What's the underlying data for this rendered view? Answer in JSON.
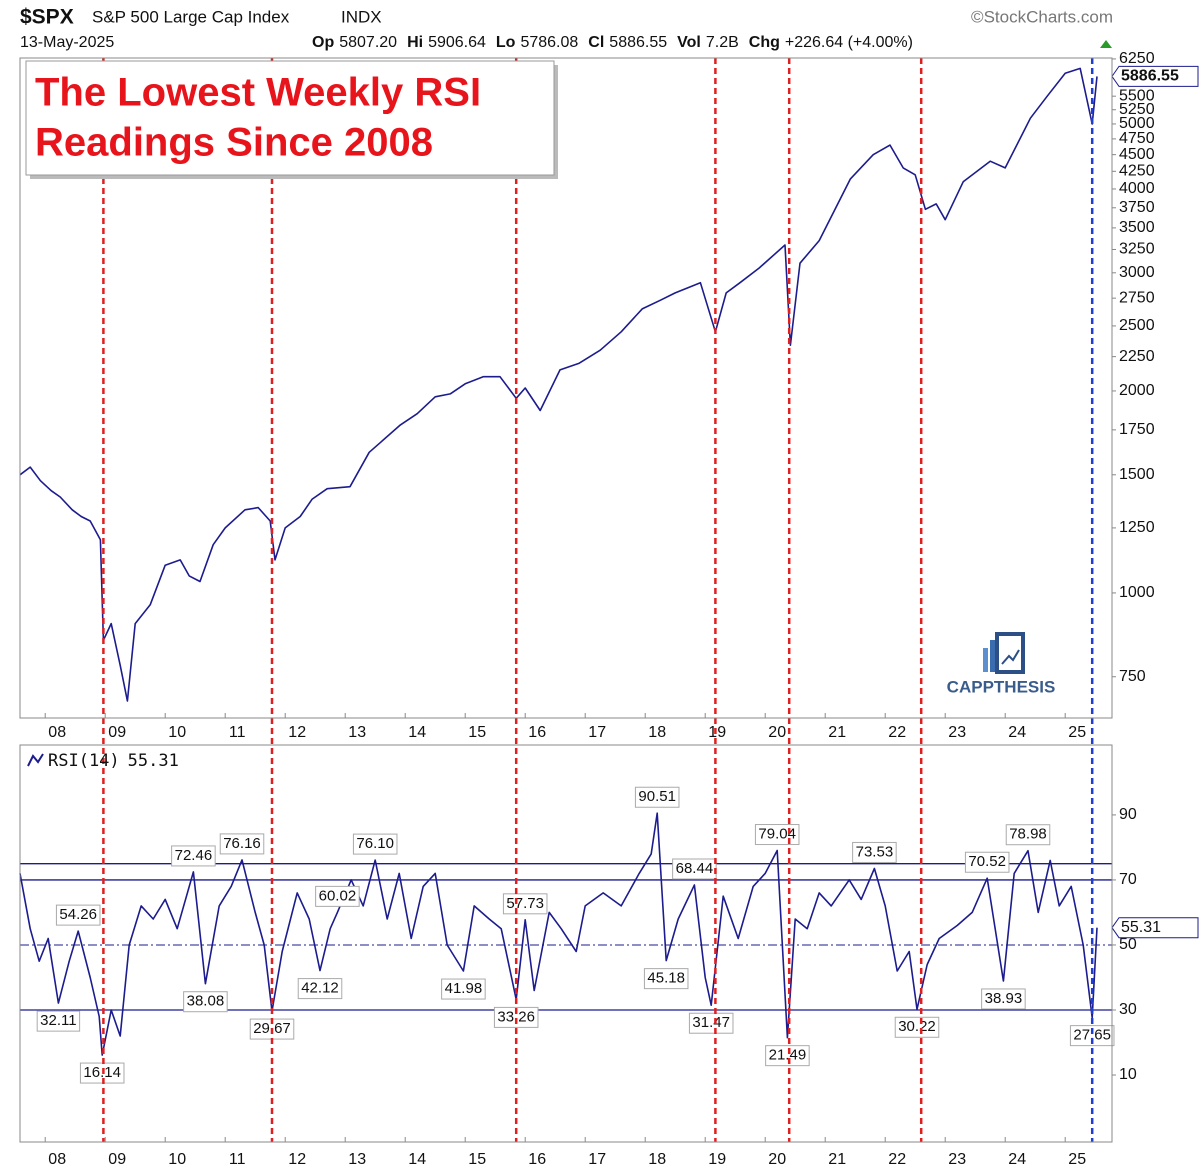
{
  "header": {
    "symbol": "$SPX",
    "name": "S&P 500 Large Cap Index",
    "exchange": "INDX",
    "source": "©StockCharts.com",
    "date": "13-May-2025",
    "quote": [
      {
        "label": "Op",
        "value": "5807.20"
      },
      {
        "label": "Hi",
        "value": "5906.64"
      },
      {
        "label": "Lo",
        "value": "5786.08"
      },
      {
        "label": "Cl",
        "value": "5886.55"
      },
      {
        "label": "Vol",
        "value": "7.2B"
      },
      {
        "label": "Chg",
        "value": "+226.64 (+4.00%)"
      }
    ]
  },
  "callout": [
    "The Lowest Weekly RSI",
    "Readings Since 2008"
  ],
  "watermark": "CAPPTHESIS",
  "markers": {
    "x": [
      2008.97,
      2011.78,
      2015.85,
      2019.17,
      2020.4,
      2022.6,
      2025.45
    ],
    "colors": [
      "#e02020",
      "#e02020",
      "#e02020",
      "#e02020",
      "#e02020",
      "#e02020",
      "#1f3fd0"
    ]
  },
  "chart_data": [
    {
      "type": "line",
      "color": "#1c1c8e",
      "log_scale": true,
      "x": [
        2007.58,
        2007.75,
        2007.92,
        2008.1,
        2008.25,
        2008.45,
        2008.6,
        2008.75,
        2008.92,
        2008.97,
        2009.1,
        2009.25,
        2009.37,
        2009.5,
        2009.75,
        2010.0,
        2010.25,
        2010.4,
        2010.58,
        2010.8,
        2011.0,
        2011.33,
        2011.55,
        2011.75,
        2011.83,
        2012.0,
        2012.25,
        2012.45,
        2012.7,
        2013.08,
        2013.4,
        2013.6,
        2013.92,
        2014.2,
        2014.5,
        2014.75,
        2015.0,
        2015.3,
        2015.58,
        2015.85,
        2016.0,
        2016.25,
        2016.58,
        2016.9,
        2017.25,
        2017.6,
        2017.95,
        2018.25,
        2018.5,
        2018.92,
        2019.17,
        2019.35,
        2019.58,
        2019.9,
        2020.33,
        2020.42,
        2020.58,
        2020.9,
        2021.42,
        2021.8,
        2022.08,
        2022.3,
        2022.5,
        2022.67,
        2022.85,
        2023.0,
        2023.3,
        2023.75,
        2024.0,
        2024.42,
        2024.7,
        2025.0,
        2025.25,
        2025.45,
        2025.53
      ],
      "values": [
        1500,
        1540,
        1470,
        1420,
        1390,
        1330,
        1300,
        1280,
        1200,
        850,
        900,
        780,
        690,
        900,
        960,
        1100,
        1120,
        1060,
        1040,
        1180,
        1250,
        1330,
        1340,
        1280,
        1120,
        1250,
        1300,
        1380,
        1430,
        1440,
        1620,
        1680,
        1780,
        1850,
        1960,
        1980,
        2050,
        2100,
        2100,
        1950,
        2020,
        1870,
        2150,
        2200,
        2300,
        2450,
        2650,
        2730,
        2800,
        2900,
        2450,
        2800,
        2900,
        3050,
        3300,
        2340,
        3100,
        3350,
        4140,
        4500,
        4650,
        4300,
        4200,
        3730,
        3800,
        3600,
        4100,
        4400,
        4300,
        5100,
        5500,
        5950,
        6050,
        5000,
        5886.55
      ],
      "xlim": [
        2007.58,
        2025.78
      ],
      "ylim": [
        651,
        6270
      ],
      "xticks": [
        {
          "value": 2008,
          "label": "08"
        },
        {
          "value": 2009,
          "label": "09"
        },
        {
          "value": 2010,
          "label": "10"
        },
        {
          "value": 2011,
          "label": "11"
        },
        {
          "value": 2012,
          "label": "12"
        },
        {
          "value": 2013,
          "label": "13"
        },
        {
          "value": 2014,
          "label": "14"
        },
        {
          "value": 2015,
          "label": "15"
        },
        {
          "value": 2016,
          "label": "16"
        },
        {
          "value": 2017,
          "label": "17"
        },
        {
          "value": 2018,
          "label": "18"
        },
        {
          "value": 2019,
          "label": "19"
        },
        {
          "value": 2020,
          "label": "20"
        },
        {
          "value": 2021,
          "label": "21"
        },
        {
          "value": 2022,
          "label": "22"
        },
        {
          "value": 2023,
          "label": "23"
        },
        {
          "value": 2024,
          "label": "24"
        },
        {
          "value": 2025,
          "label": "25"
        }
      ],
      "yticks": [
        750,
        1000,
        1250,
        1500,
        1750,
        2000,
        2250,
        2500,
        2750,
        3000,
        3250,
        3500,
        3750,
        4000,
        4250,
        4500,
        4750,
        5000,
        5250,
        5500,
        6250
      ]
    },
    {
      "type": "line",
      "legend": "RSI(14)",
      "color": "#1c1c8e",
      "x": [
        2007.58,
        2007.75,
        2007.9,
        2008.05,
        2008.22,
        2008.4,
        2008.55,
        2008.75,
        2008.9,
        2008.95,
        2009.1,
        2009.25,
        2009.4,
        2009.6,
        2009.8,
        2010.0,
        2010.2,
        2010.47,
        2010.67,
        2010.9,
        2011.1,
        2011.28,
        2011.5,
        2011.65,
        2011.78,
        2011.95,
        2012.2,
        2012.4,
        2012.58,
        2012.75,
        2012.87,
        2013.1,
        2013.3,
        2013.5,
        2013.7,
        2013.9,
        2014.1,
        2014.3,
        2014.5,
        2014.7,
        2014.97,
        2015.15,
        2015.4,
        2015.6,
        2015.85,
        2016.0,
        2016.15,
        2016.4,
        2016.6,
        2016.85,
        2017.0,
        2017.3,
        2017.6,
        2017.9,
        2018.1,
        2018.2,
        2018.35,
        2018.55,
        2018.82,
        2019.0,
        2019.1,
        2019.3,
        2019.55,
        2019.8,
        2020.0,
        2020.2,
        2020.37,
        2020.5,
        2020.7,
        2020.9,
        2021.1,
        2021.4,
        2021.6,
        2021.82,
        2022.0,
        2022.2,
        2022.4,
        2022.53,
        2022.7,
        2022.9,
        2023.2,
        2023.45,
        2023.7,
        2023.97,
        2024.15,
        2024.38,
        2024.55,
        2024.75,
        2024.9,
        2025.1,
        2025.3,
        2025.45,
        2025.53
      ],
      "values": [
        72,
        55,
        45,
        52,
        32.11,
        45,
        54.26,
        40,
        28,
        16.14,
        30,
        22,
        50,
        62,
        58,
        64,
        55,
        72.46,
        38.08,
        62,
        68,
        76.16,
        60,
        50,
        29.67,
        48,
        66,
        58,
        42.12,
        55,
        60.02,
        70,
        62,
        76.1,
        58,
        72,
        52,
        68,
        72,
        50,
        41.98,
        62,
        58,
        55,
        33.26,
        57.73,
        36,
        60,
        55,
        48,
        62,
        66,
        62,
        72,
        78,
        90.51,
        45.18,
        58,
        68.44,
        40,
        31.47,
        65,
        52,
        68,
        72,
        79.04,
        21.49,
        58,
        55,
        66,
        62,
        70,
        64,
        73.53,
        62,
        42,
        48,
        30.22,
        44,
        52,
        56,
        60,
        70.52,
        38.93,
        72,
        78.98,
        60,
        76,
        62,
        68,
        50,
        27.65,
        55.31
      ],
      "labels": {
        "x": [
          2008.55,
          2008.22,
          2008.95,
          2010.47,
          2010.67,
          2011.28,
          2011.78,
          2012.87,
          2012.58,
          2013.5,
          2014.97,
          2015.85,
          2016.0,
          2018.2,
          2018.35,
          2018.82,
          2019.1,
          2020.2,
          2020.37,
          2021.82,
          2022.53,
          2023.7,
          2023.97,
          2024.38,
          2025.45
        ],
        "values": [
          54.26,
          32.11,
          16.14,
          72.46,
          38.08,
          76.16,
          29.67,
          60.02,
          42.12,
          76.1,
          41.98,
          33.26,
          57.73,
          90.51,
          45.18,
          68.44,
          31.47,
          79.04,
          21.49,
          73.53,
          30.22,
          70.52,
          38.93,
          78.98,
          27.65
        ],
        "value_labels": [
          "54.26",
          "32.11",
          "16.14",
          "72.46",
          "38.08",
          "76.16",
          "29.67",
          "60.02",
          "42.12",
          "76.10",
          "41.98",
          "33.26",
          "57.73",
          "90.51",
          "45.18",
          "68.44",
          "31.47",
          "79.04",
          "21.49",
          "73.53",
          "30.22",
          "70.52",
          "38.93",
          "78.98",
          "27.65"
        ]
      },
      "levels": [
        30,
        70,
        75
      ],
      "midline": 50,
      "xlim": [
        2007.58,
        2025.78
      ],
      "ylim": [
        -10.6,
        111.5
      ],
      "xticks": [
        {
          "value": 2008,
          "label": "08"
        },
        {
          "value": 2009,
          "label": "09"
        },
        {
          "value": 2010,
          "label": "10"
        },
        {
          "value": 2011,
          "label": "11"
        },
        {
          "value": 2012,
          "label": "12"
        },
        {
          "value": 2013,
          "label": "13"
        },
        {
          "value": 2014,
          "label": "14"
        },
        {
          "value": 2015,
          "label": "15"
        },
        {
          "value": 2016,
          "label": "16"
        },
        {
          "value": 2017,
          "label": "17"
        },
        {
          "value": 2018,
          "label": "18"
        },
        {
          "value": 2019,
          "label": "19"
        },
        {
          "value": 2020,
          "label": "20"
        },
        {
          "value": 2021,
          "label": "21"
        },
        {
          "value": 2022,
          "label": "22"
        },
        {
          "value": 2023,
          "label": "23"
        },
        {
          "value": 2024,
          "label": "24"
        },
        {
          "value": 2025,
          "label": "25"
        }
      ],
      "yticks": [
        10,
        30,
        50,
        70,
        90
      ]
    }
  ]
}
